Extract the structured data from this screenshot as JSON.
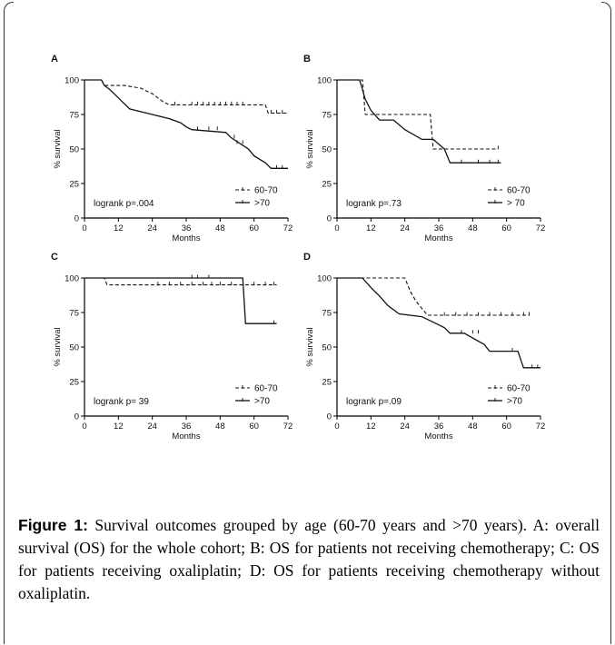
{
  "caption": {
    "label": "Figure 1:",
    "text": " Survival outcomes grouped by age (60-70 years and >70 years). A: overall survival (OS) for the whole cohort; B: OS for patients not receiving chemotherapy; C: OS for patients receiving oxaliplatin; D: OS for patients receiving chemotherapy without oxaliplatin."
  },
  "chart_data": [
    {
      "type": "line",
      "panel": "A",
      "xlabel": "Months",
      "ylabel": "% survival",
      "xlim": [
        0,
        72
      ],
      "ylim": [
        0,
        100
      ],
      "xticks": [
        "0",
        "12",
        "24",
        "36",
        "48",
        "60",
        "72"
      ],
      "yticks": [
        "0",
        "25",
        "50",
        "75",
        "100"
      ],
      "annotation": "logrank p=.004",
      "legend_position": "bottom-right",
      "series": [
        {
          "name": "60-70",
          "style": "dashed",
          "x": [
            0,
            6,
            7,
            14,
            20,
            22,
            24,
            26,
            28,
            30,
            64,
            65,
            72
          ],
          "y": [
            100,
            100,
            96,
            96,
            94,
            92,
            90,
            87,
            84,
            82,
            82,
            76,
            76
          ],
          "censor_x": [
            32,
            38,
            40,
            42,
            44,
            46,
            48,
            50,
            52,
            54,
            56,
            66,
            68,
            70
          ],
          "censor_y": [
            82,
            82,
            82,
            82,
            82,
            82,
            82,
            82,
            82,
            82,
            82,
            76,
            76,
            76
          ]
        },
        {
          "name": ">70",
          "style": "solid",
          "x": [
            0,
            6,
            7,
            9,
            11,
            13,
            16,
            22,
            30,
            34,
            36,
            38,
            50,
            52,
            55,
            58,
            60,
            64,
            66,
            72
          ],
          "y": [
            100,
            100,
            96,
            93,
            89,
            85,
            79,
            76,
            72,
            69,
            66,
            64,
            62,
            58,
            54,
            50,
            45,
            40,
            36,
            36
          ],
          "censor_x": [
            40,
            44,
            47,
            53,
            54,
            56,
            68,
            70
          ],
          "censor_y": [
            64,
            64,
            64,
            58,
            54,
            54,
            36,
            36
          ]
        }
      ]
    },
    {
      "type": "line",
      "panel": "B",
      "xlabel": "Months",
      "ylabel": "% survival",
      "xlim": [
        0,
        72
      ],
      "ylim": [
        0,
        100
      ],
      "xticks": [
        "0",
        "12",
        "24",
        "36",
        "48",
        "60",
        "72"
      ],
      "yticks": [
        "0",
        "25",
        "50",
        "75",
        "100"
      ],
      "annotation": "logrank p=.73",
      "legend_position": "bottom-right",
      "series": [
        {
          "name": "60-70",
          "style": "dashed",
          "x": [
            0,
            9,
            10,
            33,
            34,
            57
          ],
          "y": [
            100,
            100,
            75,
            75,
            50,
            50
          ],
          "censor_x": [
            57
          ],
          "censor_y": [
            50
          ]
        },
        {
          "name": "> 70",
          "style": "solid",
          "x": [
            0,
            8,
            10,
            12,
            15,
            20,
            24,
            30,
            34,
            38,
            40,
            58
          ],
          "y": [
            100,
            100,
            86,
            78,
            71,
            71,
            64,
            57,
            57,
            50,
            40,
            40
          ],
          "censor_x": [
            44,
            50,
            54,
            57
          ],
          "censor_y": [
            40,
            40,
            40,
            40
          ]
        }
      ]
    },
    {
      "type": "line",
      "panel": "C",
      "xlabel": "Months",
      "ylabel": "% survival",
      "xlim": [
        0,
        72
      ],
      "ylim": [
        0,
        100
      ],
      "xticks": [
        "0",
        "12",
        "24",
        "36",
        "48",
        "60",
        "72"
      ],
      "yticks": [
        "0",
        "25",
        "50",
        "75",
        "100"
      ],
      "annotation": "logrank p= 39",
      "legend_position": "bottom-right",
      "series": [
        {
          "name": "60-70",
          "style": "dashed",
          "x": [
            0,
            7,
            8,
            68
          ],
          "y": [
            100,
            100,
            95,
            95
          ],
          "censor_x": [
            26,
            30,
            34,
            38,
            42,
            45,
            48,
            52,
            60,
            64,
            67
          ],
          "censor_y": [
            95,
            95,
            95,
            95,
            95,
            95,
            95,
            95,
            95,
            95,
            95
          ]
        },
        {
          "name": ">70",
          "style": "solid",
          "x": [
            0,
            56,
            57,
            68
          ],
          "y": [
            100,
            100,
            67,
            67
          ],
          "censor_x": [
            38,
            40,
            44,
            67
          ],
          "censor_y": [
            100,
            100,
            100,
            67
          ]
        }
      ]
    },
    {
      "type": "line",
      "panel": "D",
      "xlabel": "Months",
      "ylabel": "% survival",
      "xlim": [
        0,
        72
      ],
      "ylim": [
        0,
        100
      ],
      "xticks": [
        "0",
        "12",
        "24",
        "36",
        "48",
        "60",
        "72"
      ],
      "yticks": [
        "0",
        "25",
        "50",
        "75",
        "100"
      ],
      "annotation": "logrank p=.09",
      "legend_position": "bottom-right",
      "series": [
        {
          "name": "60-70",
          "style": "dashed",
          "x": [
            0,
            24,
            26,
            28,
            30,
            32,
            68
          ],
          "y": [
            100,
            100,
            90,
            83,
            78,
            73,
            73
          ],
          "censor_x": [
            38,
            42,
            46,
            50,
            54,
            58,
            62,
            66,
            68
          ],
          "censor_y": [
            73,
            73,
            73,
            73,
            73,
            73,
            73,
            73,
            73
          ]
        },
        {
          "name": ">70",
          "style": "solid",
          "x": [
            0,
            9,
            12,
            15,
            18,
            22,
            30,
            34,
            38,
            40,
            45,
            52,
            54,
            64,
            66,
            72
          ],
          "y": [
            100,
            100,
            93,
            87,
            80,
            74,
            72,
            68,
            64,
            60,
            60,
            52,
            47,
            47,
            35,
            35
          ],
          "censor_x": [
            44,
            48,
            50,
            62,
            69,
            71
          ],
          "censor_y": [
            60,
            60,
            60,
            47,
            35,
            35
          ]
        }
      ]
    }
  ]
}
